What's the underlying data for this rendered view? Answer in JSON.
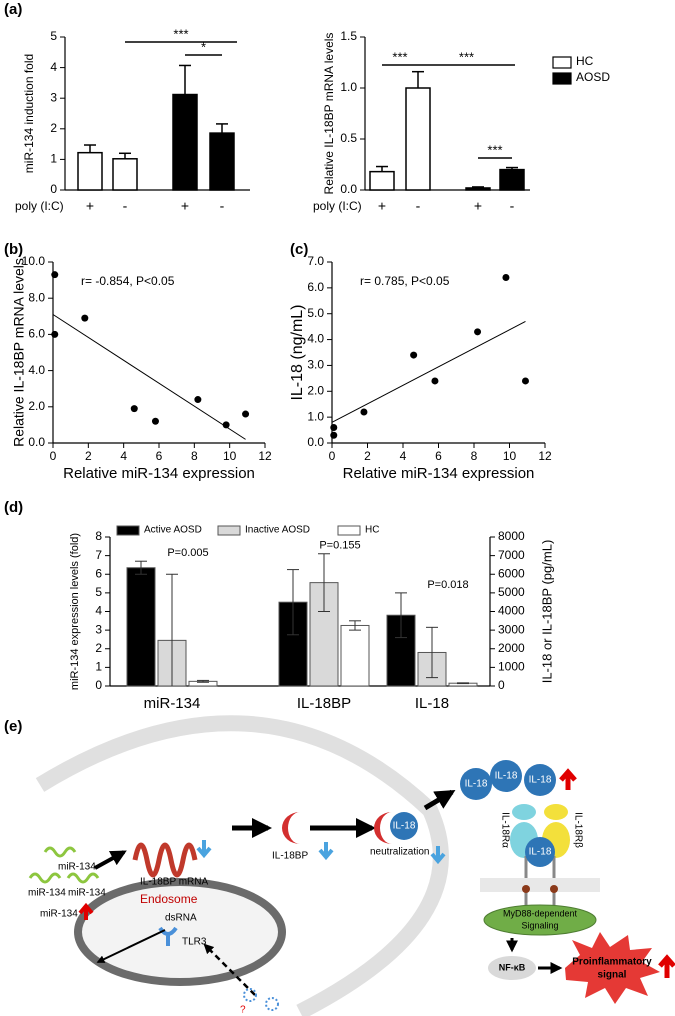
{
  "panel_labels": [
    "(a)",
    "(b)",
    "(c)",
    "(d)",
    "(e)"
  ],
  "chart_data": [
    {
      "type": "bar",
      "ylabel": "miR-134 induction fold",
      "xlabel": "poly (I:C)",
      "categories": [
        "+",
        "-",
        "+",
        "-"
      ],
      "values": [
        1.22,
        1.02,
        3.12,
        1.86
      ],
      "errors": [
        0.25,
        0.18,
        0.95,
        0.3
      ],
      "colors": [
        "#ffffff",
        "#ffffff",
        "#000000",
        "#000000"
      ],
      "ylim": [
        0,
        5
      ],
      "yticks": [
        0,
        1,
        2,
        3,
        4,
        5
      ],
      "significance": [
        "***",
        "*"
      ]
    },
    {
      "type": "bar",
      "ylabel": "Relative IL-18BP mRNA levels",
      "xlabel": "poly (I:C)",
      "categories": [
        "+",
        "-",
        "+",
        "-"
      ],
      "series": [
        {
          "name": "HC",
          "color": "#ffffff",
          "values": [
            0.18,
            1.0,
            null,
            null
          ],
          "errors": [
            0.05,
            0.16,
            null,
            null
          ]
        },
        {
          "name": "AOSD",
          "color": "#000000",
          "values": [
            null,
            null,
            0.02,
            0.2
          ],
          "errors": [
            null,
            null,
            0.01,
            0.02
          ]
        }
      ],
      "ylim": [
        0,
        1.5
      ],
      "yticks": [
        {
          "value": 0,
          "label": "0.0"
        },
        {
          "value": 0.5,
          "label": "0.5"
        },
        {
          "value": 1,
          "label": "1.0"
        },
        {
          "value": 1.5,
          "label": "1.5"
        }
      ],
      "significance": [
        "***",
        "***",
        "***"
      ]
    },
    {
      "type": "scatter",
      "ylabel": "Relative IL-18BP mRNA levels",
      "xlabel": "Relative miR-134 expression",
      "annotation": "r= -0.854, P<0.05",
      "x": [
        0.1,
        0.1,
        1.8,
        4.6,
        5.8,
        8.2,
        9.8,
        10.9
      ],
      "y": [
        9.3,
        6.0,
        6.9,
        1.9,
        1.2,
        2.4,
        1.0,
        1.6
      ],
      "fit": {
        "x": [
          0,
          10.9
        ],
        "y": [
          7.1,
          0.2
        ]
      },
      "xlim": [
        0,
        12
      ],
      "xticks": [
        0,
        2,
        4,
        6,
        8,
        10,
        12
      ],
      "ylim": [
        0,
        10
      ],
      "yticks": [
        {
          "value": 0,
          "label": "0.0"
        },
        {
          "value": 2,
          "label": "2.0"
        },
        {
          "value": 4,
          "label": "4.0"
        },
        {
          "value": 6,
          "label": "6.0"
        },
        {
          "value": 8,
          "label": "8.0"
        },
        {
          "value": 10,
          "label": "10.0"
        }
      ]
    },
    {
      "type": "scatter",
      "ylabel": "IL-18 (ng/mL)",
      "xlabel": "Relative miR-134 expression",
      "annotation": "r= 0.785, P<0.05",
      "x": [
        0.1,
        0.1,
        1.8,
        4.6,
        5.8,
        8.2,
        9.8,
        10.9
      ],
      "y": [
        0.3,
        0.6,
        1.2,
        3.4,
        2.4,
        4.3,
        6.4,
        2.4
      ],
      "fit": {
        "x": [
          0,
          10.9
        ],
        "y": [
          0.8,
          4.7
        ]
      },
      "xlim": [
        0,
        12
      ],
      "xticks": [
        0,
        2,
        4,
        6,
        8,
        10,
        12
      ],
      "ylim": [
        0,
        7
      ],
      "yticks": [
        {
          "value": 0,
          "label": "0.0"
        },
        {
          "value": 1,
          "label": "1.0"
        },
        {
          "value": 2,
          "label": "2.0"
        },
        {
          "value": 3,
          "label": "3.0"
        },
        {
          "value": 4,
          "label": "4.0"
        },
        {
          "value": 5,
          "label": "5.0"
        },
        {
          "value": 6,
          "label": "6.0"
        },
        {
          "value": 7,
          "label": "7.0"
        }
      ]
    },
    {
      "type": "groupedbar",
      "ylabel": "miR-134 expression levels (fold)",
      "y2label": "IL-18 or IL-18BP (pg/mL)",
      "categories": [
        "miR-134",
        "IL-18BP",
        "IL-18"
      ],
      "category_axis": [
        "y",
        "y2",
        "y2"
      ],
      "series": [
        {
          "name": "Active AOSD",
          "color": "#000000",
          "values": [
            6.35,
            4500,
            3800
          ],
          "errors": [
            0.35,
            1750,
            1200
          ]
        },
        {
          "name": "Inactive AOSD",
          "color": "#d9d9d9",
          "values": [
            2.45,
            5550,
            1800
          ],
          "errors": [
            3.55,
            1550,
            1350
          ]
        },
        {
          "name": "HC",
          "color": "#ffffff",
          "values": [
            0.25,
            3250,
            150
          ],
          "errors": [
            0.05,
            250,
            20
          ]
        }
      ],
      "p_values": [
        "P=0.005",
        "P=0.155",
        "P=0.018"
      ],
      "ylim": [
        0,
        8
      ],
      "yticks": [
        0,
        1,
        2,
        3,
        4,
        5,
        6,
        7,
        8
      ],
      "y2lim": [
        0,
        8000
      ],
      "y2ticks": [
        0,
        1000,
        2000,
        3000,
        4000,
        5000,
        6000,
        7000,
        8000
      ]
    }
  ],
  "diagram": {
    "mirna": [
      "miR-134",
      "miR-134",
      "miR-134"
    ],
    "mirna_up": "miR-134",
    "il18bp_mrna": "IL-18BP mRNA",
    "il18bp": "IL-18BP",
    "il18": [
      "IL-18",
      "IL-18",
      "IL-18",
      "IL-18",
      "IL-18"
    ],
    "neutralization": "neutralization",
    "receptor_alpha": "IL-18Rα",
    "receptor_beta": "IL-18Rβ",
    "myd88": [
      "MyD88-dependent",
      "Signaling"
    ],
    "nfkb": "NF-κB",
    "proinflammatory": [
      "Proinflammatory",
      "signal"
    ],
    "endosome": "Endosome",
    "dsrna": "dsRNA",
    "tlr3": "TLR3",
    "question": "?"
  }
}
